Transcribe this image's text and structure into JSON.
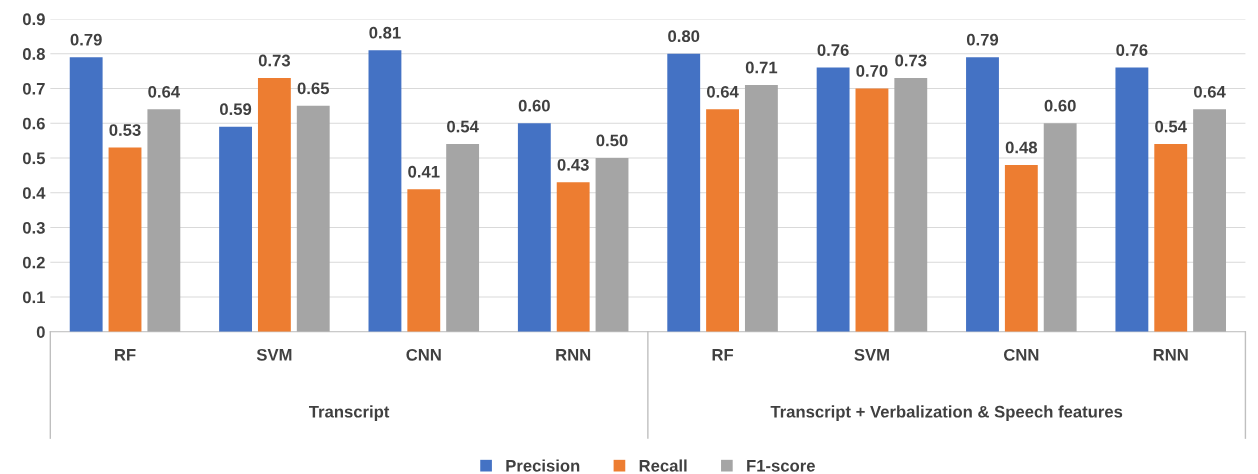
{
  "chart_data": {
    "type": "bar",
    "categories": [
      "RF",
      "SVM",
      "CNN",
      "RNN",
      "RF",
      "SVM",
      "CNN",
      "RNN"
    ],
    "series": [
      {
        "name": "Precision",
        "color": "#4472c4",
        "values": [
          0.79,
          0.59,
          0.81,
          0.6,
          0.8,
          0.76,
          0.79,
          0.76
        ],
        "value_labels": [
          "0.79",
          "0.59",
          "0.81",
          "0.60",
          "0.80",
          "0.76",
          "0.79",
          "0.76"
        ]
      },
      {
        "name": "Recall",
        "color": "#ed7d31",
        "values": [
          0.53,
          0.73,
          0.41,
          0.43,
          0.64,
          0.7,
          0.48,
          0.54
        ],
        "value_labels": [
          "0.53",
          "0.73",
          "0.41",
          "0.43",
          "0.64",
          "0.70",
          "0.48",
          "0.54"
        ]
      },
      {
        "name": "F1-score",
        "color": "#a5a5a5",
        "values": [
          0.64,
          0.65,
          0.54,
          0.5,
          0.71,
          0.73,
          0.6,
          0.64
        ],
        "value_labels": [
          "0.64",
          "0.65",
          "0.54",
          "0.50",
          "0.71",
          "0.73",
          "0.60",
          "0.64"
        ]
      }
    ],
    "ylim": [
      0,
      0.9
    ],
    "yticks": [
      0,
      0.1,
      0.2,
      0.3,
      0.4,
      0.5,
      0.6,
      0.7,
      0.8,
      0.9
    ],
    "grid": "y",
    "legend": "bottom",
    "annotations": [
      "Transcript",
      "Transcript + Verbalization & Speech features"
    ]
  }
}
